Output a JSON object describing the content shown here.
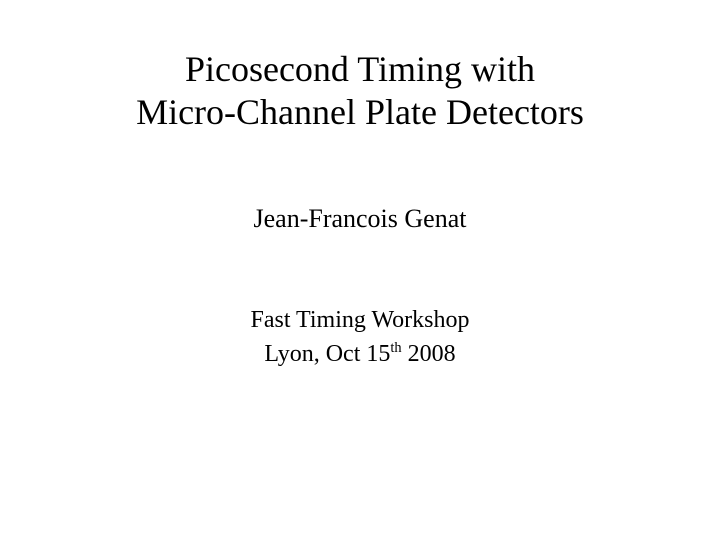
{
  "slide": {
    "title_line1": "Picosecond Timing with",
    "title_line2": "Micro-Channel Plate Detectors",
    "title_fontsize": 36,
    "author": "Jean-Francois Genat",
    "author_fontsize": 26,
    "event_line1": "Fast Timing Workshop",
    "event_date_prefix": "Lyon, Oct 15",
    "event_date_ordinal": "th",
    "event_date_suffix": " 2008",
    "event_fontsize": 24,
    "background_color": "#ffffff",
    "text_color": "#000000"
  }
}
